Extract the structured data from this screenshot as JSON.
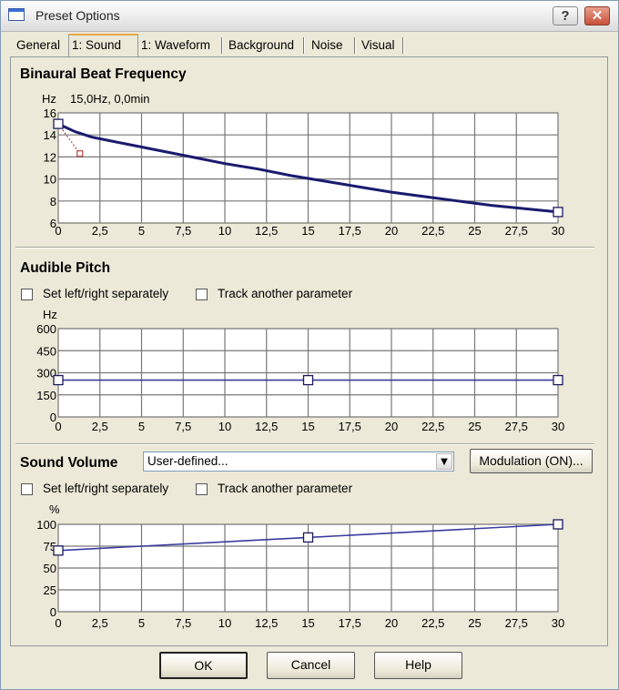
{
  "window": {
    "title": "Preset Options",
    "help_label": "?",
    "close_label": "✕",
    "icon": "window-icon"
  },
  "tabs": [
    {
      "label": "General",
      "active": false
    },
    {
      "label": "1: Sound",
      "active": true
    },
    {
      "label": "1: Waveform",
      "active": false
    },
    {
      "label": "Background",
      "active": false
    },
    {
      "label": "Noise",
      "active": false
    },
    {
      "label": "Visual",
      "active": false
    }
  ],
  "binaural": {
    "title": "Binaural Beat Frequency",
    "unit": "Hz",
    "readout": "15,0Hz, 0,0min"
  },
  "pitch": {
    "title": "Audible Pitch",
    "cb_separate": "Set left/right separately",
    "cb_track": "Track another parameter",
    "unit": "Hz"
  },
  "volume": {
    "title": "Sound Volume",
    "combo_value": "User-defined...",
    "modulation_label": "Modulation (ON)...",
    "cb_separate": "Set left/right separately",
    "cb_track": "Track another parameter",
    "unit": "%"
  },
  "buttons": {
    "ok": "OK",
    "cancel": "Cancel",
    "help": "Help"
  },
  "chart_data": [
    {
      "type": "line",
      "xlim": [
        0,
        30
      ],
      "ylim": [
        6,
        16
      ],
      "x_ticks": [
        "0",
        "2,5",
        "5",
        "7,5",
        "10",
        "12,5",
        "15",
        "17,5",
        "20",
        "22,5",
        "25",
        "27,5",
        "30"
      ],
      "y_ticks": [
        "6",
        "8",
        "10",
        "12",
        "14",
        "16"
      ],
      "points": [
        [
          0,
          15
        ],
        [
          1,
          14.3
        ],
        [
          2,
          13.8
        ],
        [
          4,
          13.2
        ],
        [
          6,
          12.6
        ],
        [
          8,
          12.0
        ],
        [
          10,
          11.4
        ],
        [
          12,
          10.9
        ],
        [
          14,
          10.3
        ],
        [
          16,
          9.8
        ],
        [
          18,
          9.3
        ],
        [
          20,
          8.8
        ],
        [
          22,
          8.4
        ],
        [
          24,
          8.0
        ],
        [
          26,
          7.6
        ],
        [
          28,
          7.3
        ],
        [
          30,
          7.0
        ]
      ],
      "control_points": [
        [
          0,
          15
        ],
        [
          30,
          7
        ]
      ],
      "handle": [
        1.3,
        12.3
      ],
      "line_color": "#1a1a6e"
    },
    {
      "type": "line",
      "xlim": [
        0,
        30
      ],
      "ylim": [
        0,
        600
      ],
      "x_ticks": [
        "0",
        "2,5",
        "5",
        "7,5",
        "10",
        "12,5",
        "15",
        "17,5",
        "20",
        "22,5",
        "25",
        "27,5",
        "30"
      ],
      "y_ticks": [
        "0",
        "150",
        "300",
        "450",
        "600"
      ],
      "points": [
        [
          0,
          250
        ],
        [
          15,
          250
        ],
        [
          30,
          250
        ]
      ],
      "control_points": [
        [
          0,
          250
        ],
        [
          15,
          250
        ],
        [
          30,
          250
        ]
      ],
      "line_color": "#3a3a9e"
    },
    {
      "type": "line",
      "xlim": [
        0,
        30
      ],
      "ylim": [
        0,
        100
      ],
      "x_ticks": [
        "0",
        "2,5",
        "5",
        "7,5",
        "10",
        "12,5",
        "15",
        "17,5",
        "20",
        "22,5",
        "25",
        "27,5",
        "30"
      ],
      "y_ticks": [
        "0",
        "25",
        "50",
        "75",
        "100"
      ],
      "points": [
        [
          0,
          70
        ],
        [
          15,
          85
        ],
        [
          30,
          100
        ]
      ],
      "control_points": [
        [
          0,
          70
        ],
        [
          15,
          85
        ],
        [
          30,
          100
        ]
      ],
      "line_color": "#3a3a9e"
    }
  ]
}
